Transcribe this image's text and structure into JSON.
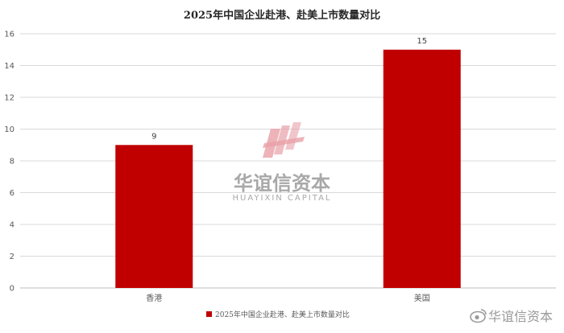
{
  "chart_data": {
    "type": "bar",
    "title": "2025年中国企业赴港、赴美上市数量对比",
    "categories": [
      "香港",
      "美国"
    ],
    "series": [
      {
        "name": "2025年中国企业赴港、赴美上市数量对比",
        "values": [
          9,
          15
        ],
        "data_labels": [
          "9",
          "15"
        ]
      }
    ],
    "y_ticks": [
      "0",
      "2",
      "4",
      "6",
      "8",
      "10",
      "12",
      "14",
      "16"
    ],
    "ylim": [
      0,
      16
    ],
    "grid": true,
    "legend": "bottom",
    "colors": {
      "bar": "#c00000",
      "grid": "#d9d9d9"
    }
  },
  "watermark": {
    "brand": "华谊信资本",
    "brand_en": "HUAYIXIN CAPITAL",
    "corner_text": "华谊信资本",
    "colors": {
      "logo": "#e8a0a8"
    },
    "icons": [
      "logo-icon",
      "weibo-icon"
    ]
  }
}
